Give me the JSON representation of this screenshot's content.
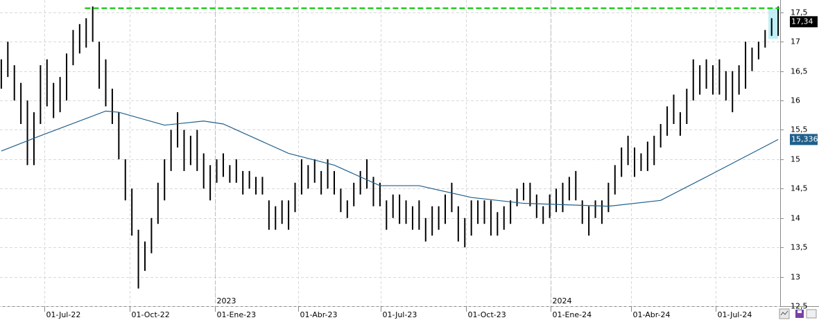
{
  "chart_data": {
    "type": "ohlc",
    "xlim": [
      -0.2,
      119.2
    ],
    "ylim": [
      12.5,
      17.71
    ],
    "yticks": [
      {
        "value": 12.5,
        "label": "12,5"
      },
      13,
      {
        "value": 13.5,
        "label": "13,5"
      },
      14,
      {
        "value": 14.5,
        "label": "14,5"
      },
      15,
      {
        "value": 15.5,
        "label": "15,5"
      },
      16,
      {
        "value": 16.5,
        "label": "16,5"
      },
      17,
      {
        "value": 17.5,
        "label": "17,5"
      }
    ],
    "xticks": [
      {
        "value": 6.6,
        "label": "01-Jul-22"
      },
      {
        "value": 19.7,
        "label": "01-Oct-22"
      },
      {
        "value": 32.7,
        "label": "01-Ene-23"
      },
      {
        "value": 45.5,
        "label": "01-Abr-23"
      },
      {
        "value": 58.1,
        "label": "01-Jul-23"
      },
      {
        "value": 71.2,
        "label": "01-Oct-23"
      },
      {
        "value": 84.1,
        "label": "01-Ene-24"
      },
      {
        "value": 96.5,
        "label": "01-Abr-24"
      },
      {
        "value": 109.4,
        "label": "01-Jul-24"
      }
    ],
    "year_marks": [
      {
        "value": 32.7,
        "label": "2023"
      },
      {
        "value": 84.1,
        "label": "2024"
      }
    ],
    "grid": true,
    "price": {
      "color": "#000000",
      "high": [
        16.7,
        17.0,
        16.6,
        16.3,
        16.0,
        15.8,
        16.6,
        16.7,
        16.3,
        16.4,
        16.8,
        17.2,
        17.3,
        17.4,
        17.6,
        17.0,
        16.7,
        16.2,
        15.8,
        15.0,
        14.5,
        13.8,
        13.6,
        14.0,
        14.6,
        15.0,
        15.5,
        15.8,
        15.5,
        15.4,
        15.5,
        15.1,
        14.9,
        15.0,
        15.1,
        14.9,
        15.0,
        14.8,
        14.8,
        14.7,
        14.7,
        14.3,
        14.2,
        14.3,
        14.3,
        14.6,
        15.0,
        14.9,
        15.0,
        14.8,
        15.0,
        14.8,
        14.5,
        14.3,
        14.6,
        14.8,
        15.0,
        14.7,
        14.6,
        14.3,
        14.4,
        14.4,
        14.3,
        14.2,
        14.3,
        14.0,
        14.2,
        14.2,
        14.4,
        14.6,
        14.2,
        14.0,
        14.3,
        14.3,
        14.3,
        14.3,
        14.1,
        14.2,
        14.3,
        14.5,
        14.6,
        14.6,
        14.4,
        14.2,
        14.4,
        14.5,
        14.6,
        14.7,
        14.8,
        14.3,
        14.2,
        14.3,
        14.3,
        14.6,
        14.9,
        15.2,
        15.4,
        15.2,
        15.1,
        15.3,
        15.4,
        15.6,
        15.9,
        16.1,
        15.8,
        16.2,
        16.7,
        16.6,
        16.7,
        16.6,
        16.7,
        16.5,
        16.5,
        16.6,
        17.0,
        16.9,
        17.0,
        17.2,
        17.4,
        17.6
      ],
      "low": [
        16.2,
        16.4,
        16.0,
        15.6,
        14.9,
        14.9,
        15.6,
        15.9,
        15.7,
        15.8,
        16.0,
        16.6,
        16.8,
        16.9,
        17.0,
        16.2,
        15.9,
        15.6,
        15.0,
        14.3,
        13.7,
        12.8,
        13.1,
        13.4,
        13.9,
        14.3,
        14.8,
        15.2,
        14.8,
        14.9,
        14.8,
        14.5,
        14.3,
        14.6,
        14.7,
        14.6,
        14.6,
        14.4,
        14.5,
        14.4,
        14.4,
        13.8,
        13.8,
        13.9,
        13.8,
        14.1,
        14.4,
        14.5,
        14.6,
        14.4,
        14.5,
        14.4,
        14.1,
        14.0,
        14.2,
        14.4,
        14.5,
        14.2,
        14.2,
        13.8,
        14.0,
        13.9,
        13.9,
        13.8,
        13.8,
        13.6,
        13.7,
        13.8,
        13.9,
        14.1,
        13.6,
        13.5,
        13.7,
        13.9,
        13.9,
        13.7,
        13.7,
        13.8,
        13.9,
        14.2,
        14.3,
        14.2,
        14.0,
        13.9,
        14.0,
        14.1,
        14.1,
        14.3,
        14.3,
        13.9,
        13.7,
        14.0,
        13.9,
        14.1,
        14.4,
        14.7,
        14.9,
        14.7,
        14.8,
        14.8,
        14.9,
        15.2,
        15.4,
        15.6,
        15.4,
        15.6,
        16.0,
        16.1,
        16.2,
        16.1,
        16.1,
        16.0,
        15.8,
        16.1,
        16.2,
        16.5,
        16.7,
        16.9,
        17.1,
        17.1
      ],
      "last": {
        "value": 17.34,
        "label": "17,34"
      }
    },
    "moving_average": {
      "color": "#1f5f8b",
      "x": [
        0,
        6,
        16,
        18,
        25,
        31,
        34,
        44,
        51,
        58,
        64,
        72,
        80,
        93,
        101,
        108,
        119
      ],
      "values": [
        15.14,
        15.4,
        15.82,
        15.8,
        15.58,
        15.65,
        15.6,
        15.1,
        14.9,
        14.55,
        14.55,
        14.35,
        14.25,
        14.2,
        14.3,
        14.7,
        15.336
      ],
      "last": {
        "value": 15.336,
        "label": "15,336"
      }
    },
    "reference_line": {
      "value": 17.57,
      "x_start": 12.8,
      "color": "#22cc22"
    }
  }
}
